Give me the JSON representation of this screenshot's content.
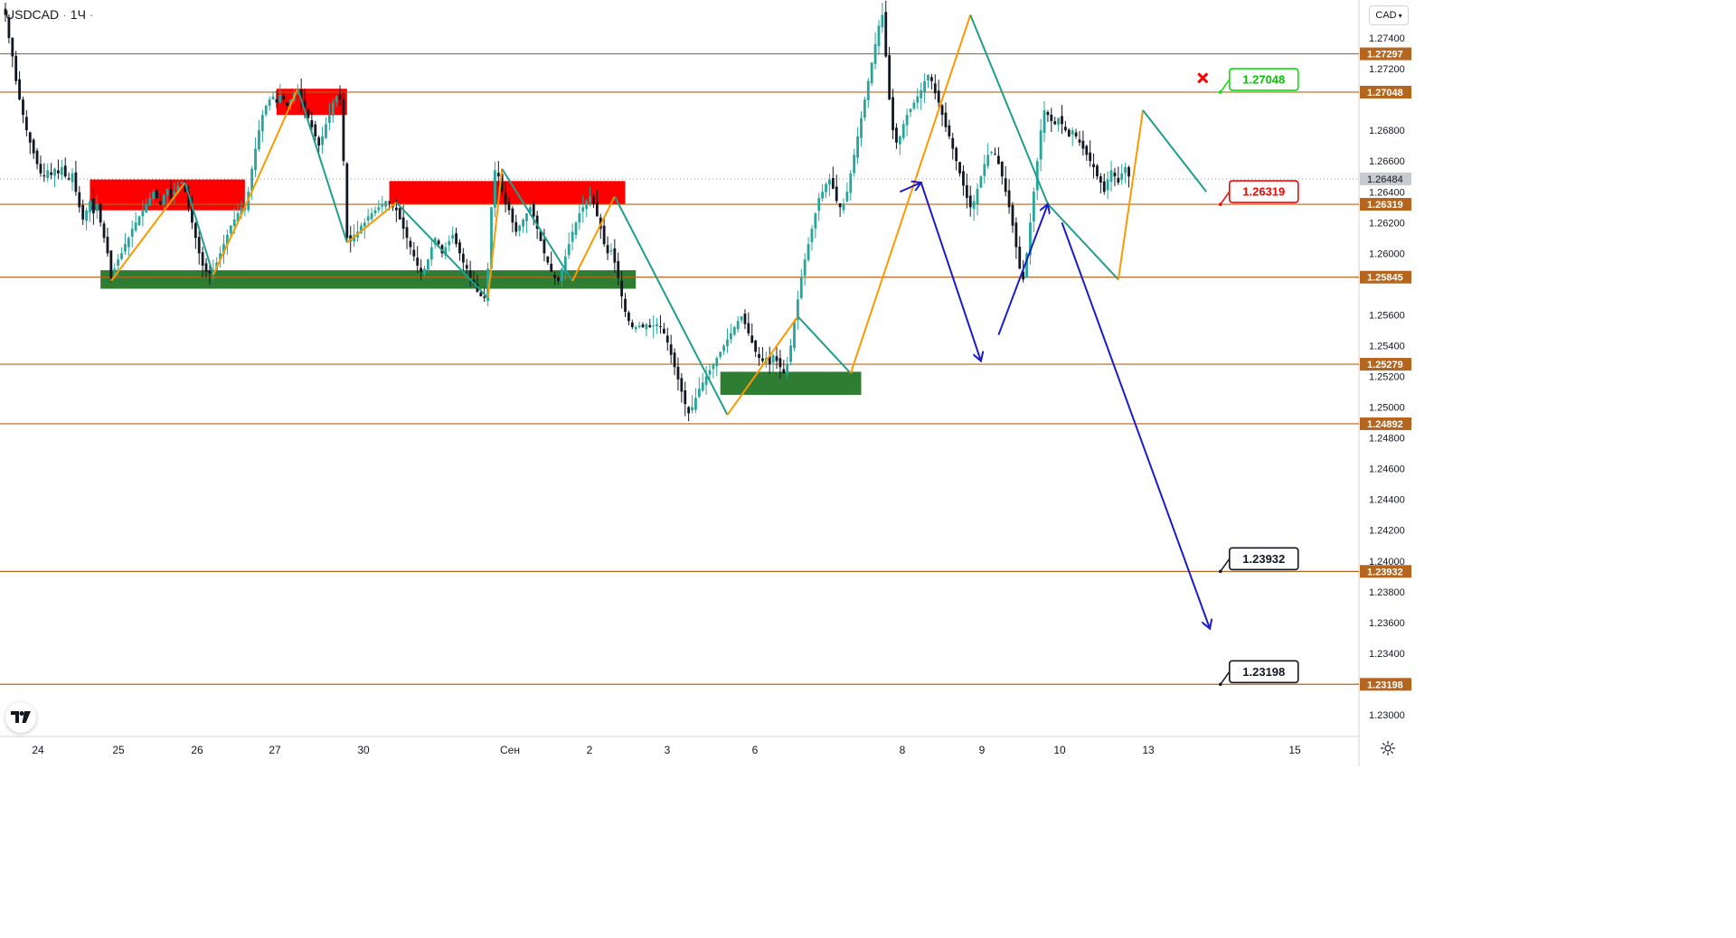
{
  "header": {
    "symbol": "USDCAD",
    "timeframe": "1Ч",
    "currency": "CAD"
  },
  "colors": {
    "up": "#26a69a",
    "down": "#131722",
    "level": "#b5651d",
    "resistance": "#ff0000",
    "support": "#2e7d32",
    "zz_up": "#ff9800",
    "zz_down": "#1f9e8c",
    "arrow": "#1a1acd"
  },
  "chart_data": {
    "type": "candlestick",
    "title": "",
    "xlabel": "",
    "ylabel": "",
    "ylim": [
      1.229,
      1.276
    ],
    "x_ticks": [
      "24",
      "25",
      "26",
      "27",
      "30",
      "Сен",
      "2",
      "3",
      "6",
      "8",
      "9",
      "10",
      "13",
      "15"
    ],
    "y_ticks": [
      "1.27400",
      "1.27200",
      "1.26800",
      "1.26600",
      "1.26400",
      "1.26200",
      "1.26000",
      "1.25600",
      "1.25400",
      "1.25200",
      "1.25000",
      "1.24800",
      "1.24600",
      "1.24400",
      "1.24200",
      "1.24000",
      "1.23800",
      "1.23600",
      "1.23400",
      "1.23000"
    ],
    "y_tick_values": [
      1.274,
      1.272,
      1.268,
      1.266,
      1.264,
      1.262,
      1.26,
      1.256,
      1.254,
      1.252,
      1.25,
      1.248,
      1.246,
      1.244,
      1.242,
      1.24,
      1.238,
      1.236,
      1.234,
      1.23
    ],
    "levels": [
      {
        "label": "1.27297",
        "value": 1.27297
      },
      {
        "label": "1.27048",
        "value": 1.27048
      },
      {
        "label": "1.26319",
        "value": 1.26319
      },
      {
        "label": "1.25845",
        "value": 1.25845
      },
      {
        "label": "1.25279",
        "value": 1.25279
      },
      {
        "label": "1.24892",
        "value": 1.24892
      },
      {
        "label": "1.23932",
        "value": 1.23932
      },
      {
        "label": "1.23198",
        "value": 1.23198
      }
    ],
    "current_price": {
      "label": "1.26484",
      "value": 1.26484
    },
    "targets": [
      {
        "label": "1.27048",
        "value": 1.27048,
        "style": "green",
        "bar": 345
      },
      {
        "label": "1.26319",
        "value": 1.26319,
        "style": "red",
        "bar": 345
      },
      {
        "label": "1.23932",
        "value": 1.23932,
        "style": "black",
        "bar": 345
      },
      {
        "label": "1.23198",
        "value": 1.23198,
        "style": "black",
        "bar": 345
      }
    ],
    "zones": [
      {
        "kind": "resistance",
        "bar_from": 24,
        "bar_to": 68,
        "top": 1.2648,
        "bottom": 1.2628
      },
      {
        "kind": "resistance",
        "bar_from": 77,
        "bar_to": 97,
        "top": 1.2707,
        "bottom": 1.269
      },
      {
        "kind": "resistance",
        "bar_from": 109,
        "bar_to": 176,
        "top": 1.2647,
        "bottom": 1.2632
      },
      {
        "kind": "support",
        "bar_from": 27,
        "bar_to": 179,
        "top": 1.2589,
        "bottom": 1.2577
      },
      {
        "kind": "support",
        "bar_from": 203,
        "bar_to": 243,
        "top": 1.2523,
        "bottom": 1.2508
      }
    ],
    "zigzag": [
      {
        "bar": 30,
        "price": 1.2582
      },
      {
        "bar": 51,
        "price": 1.2646
      },
      {
        "bar": 59,
        "price": 1.2586
      },
      {
        "bar": 68,
        "price": 1.263
      },
      {
        "bar": 83,
        "price": 1.2707
      },
      {
        "bar": 97,
        "price": 1.2607
      },
      {
        "bar": 111,
        "price": 1.2633
      },
      {
        "bar": 137,
        "price": 1.2571
      },
      {
        "bar": 141,
        "price": 1.2655
      },
      {
        "bar": 161,
        "price": 1.2582
      },
      {
        "bar": 173,
        "price": 1.2637
      },
      {
        "bar": 205,
        "price": 1.2495
      },
      {
        "bar": 225,
        "price": 1.2559
      },
      {
        "bar": 240,
        "price": 1.2522
      },
      {
        "bar": 274,
        "price": 1.2755
      },
      {
        "bar": 296,
        "price": 1.2632
      },
      {
        "bar": 316,
        "price": 1.2583
      },
      {
        "bar": 323,
        "price": 1.2693
      },
      {
        "bar": 341,
        "price": 1.264
      }
    ],
    "projection": [
      {
        "from_bar": 254,
        "from_price": 1.264,
        "to_bar": 260,
        "to_price": 1.2646
      },
      {
        "from_bar": 260,
        "from_price": 1.2646,
        "to_bar": 277,
        "to_price": 1.253
      },
      {
        "from_bar": 282,
        "from_price": 1.2547,
        "to_bar": 296,
        "to_price": 1.2632
      },
      {
        "from_bar": 300,
        "from_price": 1.262,
        "to_bar": 342,
        "to_price": 1.2356
      }
    ],
    "candles_ohlc_path": [
      1.2755,
      1.274,
      1.2728,
      1.2712,
      1.27,
      1.269,
      1.268,
      1.2672,
      1.2665,
      1.2658,
      1.2652,
      1.265,
      1.2654,
      1.2651,
      1.2655,
      1.2652,
      1.2656,
      1.265,
      1.2648,
      1.2652,
      1.264,
      1.263,
      1.2622,
      1.2628,
      1.2634,
      1.2626,
      1.2632,
      1.262,
      1.261,
      1.26,
      1.2584,
      1.259,
      1.2596,
      1.26,
      1.2606,
      1.261,
      1.2616,
      1.262,
      1.2624,
      1.2628,
      1.2632,
      1.2636,
      1.264,
      1.2636,
      1.2632,
      1.2638,
      1.2642,
      1.2636,
      1.264,
      1.2644,
      1.2646,
      1.264,
      1.263,
      1.262,
      1.261,
      1.26,
      1.2592,
      1.2588,
      1.2587,
      1.2588,
      1.2594,
      1.26,
      1.2606,
      1.2612,
      1.2618,
      1.2622,
      1.2626,
      1.263,
      1.263,
      1.264,
      1.2655,
      1.2668,
      1.268,
      1.269,
      1.2696,
      1.27,
      1.2702,
      1.2698,
      1.2703,
      1.27,
      1.2696,
      1.27,
      1.2704,
      1.2706,
      1.27,
      1.2694,
      1.2688,
      1.2682,
      1.2676,
      1.267,
      1.2676,
      1.2684,
      1.269,
      1.2698,
      1.2702,
      1.27,
      1.266,
      1.261,
      1.2608,
      1.2612,
      1.2614,
      1.2618,
      1.262,
      1.2624,
      1.2626,
      1.2628,
      1.263,
      1.2632,
      1.2634,
      1.2633,
      1.263,
      1.2628,
      1.2622,
      1.2616,
      1.261,
      1.2604,
      1.2598,
      1.2592,
      1.2588,
      1.259,
      1.2596,
      1.2604,
      1.261,
      1.2606,
      1.26,
      1.2604,
      1.2608,
      1.2612,
      1.2606,
      1.26,
      1.2594,
      1.259,
      1.2584,
      1.258,
      1.2575,
      1.2572,
      1.2571,
      1.259,
      1.263,
      1.2654,
      1.265,
      1.264,
      1.2632,
      1.2628,
      1.262,
      1.2614,
      1.2618,
      1.2622,
      1.2626,
      1.263,
      1.2624,
      1.2616,
      1.2608,
      1.26,
      1.2594,
      1.2588,
      1.2584,
      1.2582,
      1.259,
      1.2598,
      1.2606,
      1.2614,
      1.262,
      1.2626,
      1.263,
      1.2634,
      1.2637,
      1.2632,
      1.2624,
      1.2616,
      1.2606,
      1.26,
      1.2602,
      1.2594,
      1.2584,
      1.2572,
      1.2562,
      1.2556,
      1.2552,
      1.2552,
      1.2553,
      1.2552,
      1.2554,
      1.2552,
      1.2553,
      1.2554,
      1.2552,
      1.2548,
      1.2542,
      1.2534,
      1.2526,
      1.2518,
      1.251,
      1.2502,
      1.2496,
      1.25,
      1.2506,
      1.2512,
      1.2516,
      1.252,
      1.2524,
      1.2528,
      1.2532,
      1.2536,
      1.254,
      1.2544,
      1.2548,
      1.2552,
      1.2556,
      1.2559,
      1.2554,
      1.2548,
      1.2542,
      1.2536,
      1.2532,
      1.253,
      1.2532,
      1.2528,
      1.2534,
      1.253,
      1.2526,
      1.2522,
      1.2528,
      1.254,
      1.2556,
      1.257,
      1.2584,
      1.2596,
      1.2606,
      1.2616,
      1.2626,
      1.2636,
      1.264,
      1.2645,
      1.2648,
      1.2642,
      1.2634,
      1.263,
      1.2632,
      1.264,
      1.2652,
      1.2664,
      1.2676,
      1.2688,
      1.27,
      1.2712,
      1.2724,
      1.2736,
      1.2748,
      1.2755,
      1.2728,
      1.27,
      1.268,
      1.2672,
      1.2676,
      1.2684,
      1.269,
      1.2694,
      1.2698,
      1.2702,
      1.2706,
      1.2712,
      1.2716,
      1.2712,
      1.2704,
      1.2698,
      1.269,
      1.2682,
      1.2676,
      1.2668,
      1.266,
      1.2652,
      1.2644,
      1.2636,
      1.263,
      1.2634,
      1.2642,
      1.265,
      1.2658,
      1.2664,
      1.2666,
      1.2664,
      1.2658,
      1.265,
      1.264,
      1.263,
      1.2618,
      1.2604,
      1.259,
      1.2583,
      1.26,
      1.262,
      1.264,
      1.266,
      1.268,
      1.2693,
      1.269,
      1.2686,
      1.2684,
      1.2688,
      1.2684,
      1.268,
      1.2676,
      1.268,
      1.2676,
      1.2672,
      1.2668,
      1.2664,
      1.266,
      1.2656,
      1.265,
      1.2646,
      1.264,
      1.2648,
      1.2654,
      1.265,
      1.2646,
      1.2652,
      1.2656,
      1.265
    ]
  }
}
